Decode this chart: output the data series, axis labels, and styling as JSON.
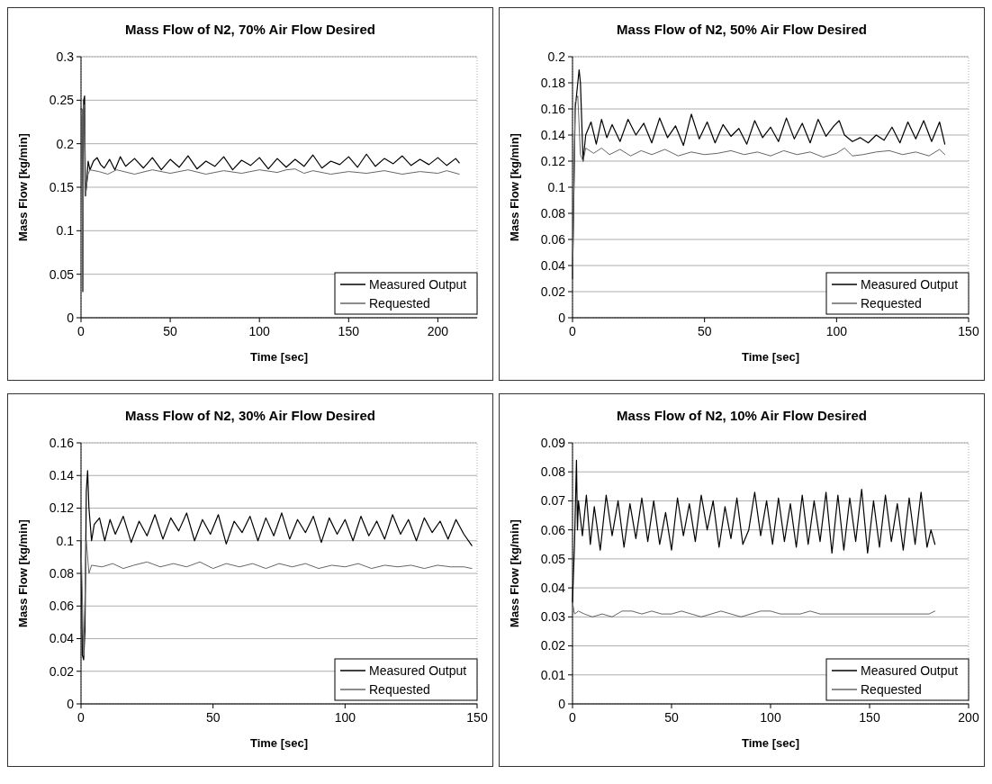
{
  "chart_data": [
    {
      "type": "line",
      "title": "Mass Flow of N2, 70% Air Flow Desired",
      "xlabel": "Time [sec]",
      "ylabel": "Mass Flow [kg/min]",
      "xlim": [
        0,
        222
      ],
      "xticks": [
        0,
        50,
        100,
        150,
        200
      ],
      "ylim": [
        0,
        0.3
      ],
      "yticks": [
        0,
        0.05,
        0.1,
        0.15,
        0.2,
        0.25,
        0.3
      ],
      "grid": "y",
      "legend": "bottom right",
      "line_style": "solid",
      "series": [
        {
          "name": "Measured Output",
          "color": "#000000",
          "x": [
            0,
            0.5,
            1,
            1.5,
            2,
            2.5,
            3,
            4,
            5,
            7,
            9,
            11,
            13,
            16,
            19,
            22,
            25,
            30,
            35,
            40,
            45,
            50,
            55,
            60,
            65,
            70,
            75,
            80,
            85,
            90,
            95,
            100,
            105,
            110,
            115,
            120,
            125,
            130,
            135,
            140,
            145,
            150,
            155,
            160,
            165,
            170,
            175,
            180,
            185,
            190,
            195,
            200,
            205,
            210,
            212
          ],
          "values": [
            0.24,
            0.24,
            0.03,
            0.25,
            0.255,
            0.14,
            0.15,
            0.18,
            0.17,
            0.18,
            0.184,
            0.176,
            0.172,
            0.182,
            0.17,
            0.185,
            0.174,
            0.183,
            0.172,
            0.184,
            0.17,
            0.182,
            0.173,
            0.186,
            0.171,
            0.18,
            0.174,
            0.185,
            0.17,
            0.181,
            0.175,
            0.184,
            0.171,
            0.183,
            0.173,
            0.182,
            0.174,
            0.187,
            0.172,
            0.18,
            0.176,
            0.185,
            0.173,
            0.188,
            0.174,
            0.183,
            0.177,
            0.186,
            0.175,
            0.182,
            0.176,
            0.184,
            0.175,
            0.183,
            0.178
          ]
        },
        {
          "name": "Requested",
          "color": "#666666",
          "x": [
            0,
            0.5,
            1,
            1.5,
            2,
            2.5,
            3,
            4,
            5,
            10,
            15,
            20,
            30,
            40,
            50,
            60,
            70,
            80,
            90,
            100,
            110,
            115,
            120,
            125,
            130,
            140,
            150,
            160,
            170,
            180,
            190,
            200,
            205,
            212
          ],
          "values": [
            0.24,
            0.23,
            0.03,
            0.24,
            0.245,
            0.14,
            0.15,
            0.165,
            0.17,
            0.168,
            0.165,
            0.17,
            0.165,
            0.17,
            0.166,
            0.17,
            0.165,
            0.169,
            0.166,
            0.17,
            0.167,
            0.17,
            0.171,
            0.166,
            0.169,
            0.165,
            0.168,
            0.166,
            0.169,
            0.165,
            0.168,
            0.166,
            0.169,
            0.165
          ]
        }
      ]
    },
    {
      "type": "line",
      "title": "Mass Flow of N2, 50% Air Flow Desired",
      "xlabel": "Time [sec]",
      "ylabel": "Mass Flow [kg/min]",
      "xlim": [
        0,
        150
      ],
      "xticks": [
        0,
        50,
        100,
        150
      ],
      "ylim": [
        0,
        0.2
      ],
      "yticks": [
        0,
        0.02,
        0.04,
        0.06,
        0.08,
        0.1,
        0.12,
        0.14,
        0.16,
        0.18,
        0.2
      ],
      "grid": "y",
      "legend": "bottom right",
      "line_style": "solid",
      "series": [
        {
          "name": "Measured Output",
          "color": "#000000",
          "x": [
            0,
            1,
            1.5,
            2.5,
            3,
            4,
            5,
            7,
            9,
            11,
            13,
            15,
            18,
            21,
            24,
            27,
            30,
            33,
            36,
            39,
            42,
            45,
            48,
            51,
            54,
            57,
            60,
            63,
            66,
            69,
            72,
            75,
            78,
            81,
            84,
            87,
            90,
            93,
            96,
            99,
            101,
            103,
            106,
            109,
            112,
            115,
            118,
            121,
            124,
            127,
            130,
            133,
            136,
            139,
            141
          ],
          "values": [
            0.03,
            0.16,
            0.17,
            0.19,
            0.18,
            0.12,
            0.14,
            0.15,
            0.133,
            0.152,
            0.138,
            0.148,
            0.135,
            0.152,
            0.14,
            0.149,
            0.134,
            0.153,
            0.138,
            0.147,
            0.132,
            0.156,
            0.137,
            0.15,
            0.134,
            0.148,
            0.139,
            0.145,
            0.133,
            0.151,
            0.138,
            0.146,
            0.135,
            0.153,
            0.137,
            0.149,
            0.134,
            0.152,
            0.139,
            0.147,
            0.151,
            0.14,
            0.135,
            0.138,
            0.134,
            0.14,
            0.136,
            0.146,
            0.134,
            0.15,
            0.137,
            0.151,
            0.135,
            0.15,
            0.133
          ]
        },
        {
          "name": "Requested",
          "color": "#666666",
          "x": [
            0,
            1,
            2,
            3,
            4,
            5,
            8,
            11,
            14,
            18,
            22,
            26,
            30,
            35,
            40,
            45,
            50,
            55,
            60,
            65,
            70,
            75,
            80,
            85,
            90,
            95,
            100,
            103,
            106,
            110,
            115,
            120,
            125,
            130,
            135,
            139,
            141
          ],
          "values": [
            0.03,
            0.165,
            0.17,
            0.125,
            0.12,
            0.13,
            0.126,
            0.13,
            0.125,
            0.129,
            0.124,
            0.128,
            0.125,
            0.129,
            0.124,
            0.127,
            0.125,
            0.126,
            0.128,
            0.125,
            0.127,
            0.124,
            0.128,
            0.125,
            0.127,
            0.123,
            0.126,
            0.13,
            0.124,
            0.125,
            0.127,
            0.128,
            0.125,
            0.127,
            0.124,
            0.129,
            0.125
          ]
        }
      ]
    },
    {
      "type": "line",
      "title": "Mass Flow of N2, 30% Air Flow Desired",
      "xlabel": "Time [sec]",
      "ylabel": "Mass Flow [kg/min]",
      "xlim": [
        0,
        150
      ],
      "xticks": [
        0,
        50,
        100,
        150
      ],
      "ylim": [
        0,
        0.16
      ],
      "yticks": [
        0,
        0.02,
        0.04,
        0.06,
        0.08,
        0.1,
        0.12,
        0.14,
        0.16
      ],
      "grid": "y",
      "legend": "bottom right",
      "line_style": "solid",
      "series": [
        {
          "name": "Measured Output",
          "color": "#000000",
          "x": [
            0,
            0.5,
            1,
            1.5,
            2,
            2.5,
            3,
            4,
            5,
            7,
            9,
            11,
            13,
            16,
            19,
            22,
            25,
            28,
            31,
            34,
            37,
            40,
            43,
            46,
            49,
            52,
            55,
            58,
            61,
            64,
            67,
            70,
            73,
            76,
            79,
            82,
            85,
            88,
            91,
            94,
            97,
            100,
            103,
            106,
            109,
            112,
            115,
            118,
            121,
            124,
            127,
            130,
            133,
            136,
            139,
            142,
            145,
            148
          ],
          "values": [
            0.1,
            0.03,
            0.027,
            0.045,
            0.13,
            0.143,
            0.12,
            0.1,
            0.11,
            0.114,
            0.1,
            0.113,
            0.104,
            0.115,
            0.099,
            0.112,
            0.103,
            0.116,
            0.101,
            0.114,
            0.106,
            0.117,
            0.1,
            0.113,
            0.104,
            0.116,
            0.098,
            0.112,
            0.105,
            0.115,
            0.1,
            0.114,
            0.103,
            0.117,
            0.101,
            0.113,
            0.105,
            0.115,
            0.099,
            0.114,
            0.104,
            0.113,
            0.1,
            0.115,
            0.103,
            0.112,
            0.101,
            0.116,
            0.104,
            0.113,
            0.1,
            0.114,
            0.105,
            0.112,
            0.101,
            0.113,
            0.104,
            0.097
          ]
        },
        {
          "name": "Requested",
          "color": "#666666",
          "x": [
            0,
            1,
            2,
            3,
            4,
            8,
            12,
            16,
            20,
            25,
            30,
            35,
            40,
            45,
            50,
            55,
            60,
            65,
            70,
            75,
            80,
            85,
            90,
            95,
            100,
            105,
            110,
            115,
            120,
            125,
            130,
            135,
            140,
            145,
            148
          ],
          "values": [
            0.1,
            0.03,
            0.1,
            0.08,
            0.085,
            0.084,
            0.086,
            0.083,
            0.085,
            0.087,
            0.084,
            0.086,
            0.084,
            0.087,
            0.083,
            0.086,
            0.084,
            0.086,
            0.083,
            0.086,
            0.084,
            0.086,
            0.083,
            0.085,
            0.084,
            0.086,
            0.083,
            0.085,
            0.084,
            0.085,
            0.083,
            0.085,
            0.084,
            0.084,
            0.083
          ]
        }
      ]
    },
    {
      "type": "line",
      "title": "Mass Flow of N2, 10% Air Flow Desired",
      "xlabel": "Time [sec]",
      "ylabel": "Mass Flow [kg/min]",
      "xlim": [
        0,
        200
      ],
      "xticks": [
        0,
        50,
        100,
        150,
        200
      ],
      "ylim": [
        0,
        0.09
      ],
      "yticks": [
        0,
        0.01,
        0.02,
        0.03,
        0.04,
        0.05,
        0.06,
        0.07,
        0.08,
        0.09
      ],
      "grid": "y",
      "legend": "bottom right",
      "line_style": "solid",
      "series": [
        {
          "name": "Measured Output",
          "color": "#000000",
          "x": [
            0,
            1,
            2,
            2.5,
            3,
            5,
            7,
            9,
            11,
            14,
            17,
            20,
            23,
            26,
            29,
            32,
            35,
            38,
            41,
            44,
            47,
            50,
            53,
            56,
            59,
            62,
            65,
            68,
            71,
            74,
            77,
            80,
            83,
            86,
            89,
            92,
            95,
            98,
            101,
            104,
            107,
            110,
            113,
            116,
            119,
            122,
            125,
            128,
            131,
            134,
            137,
            140,
            143,
            146,
            149,
            152,
            155,
            158,
            161,
            164,
            167,
            170,
            173,
            176,
            179,
            181,
            183
          ],
          "values": [
            0.035,
            0.055,
            0.084,
            0.06,
            0.07,
            0.058,
            0.072,
            0.055,
            0.068,
            0.053,
            0.072,
            0.058,
            0.07,
            0.054,
            0.069,
            0.057,
            0.071,
            0.056,
            0.07,
            0.055,
            0.066,
            0.053,
            0.071,
            0.058,
            0.069,
            0.056,
            0.072,
            0.06,
            0.07,
            0.054,
            0.068,
            0.057,
            0.071,
            0.055,
            0.06,
            0.073,
            0.058,
            0.07,
            0.055,
            0.071,
            0.056,
            0.069,
            0.054,
            0.072,
            0.055,
            0.07,
            0.056,
            0.073,
            0.052,
            0.072,
            0.053,
            0.071,
            0.056,
            0.074,
            0.052,
            0.07,
            0.054,
            0.072,
            0.056,
            0.069,
            0.053,
            0.071,
            0.055,
            0.073,
            0.054,
            0.06,
            0.055
          ]
        },
        {
          "name": "Requested",
          "color": "#666666",
          "x": [
            0,
            1,
            3,
            6,
            10,
            15,
            20,
            25,
            30,
            35,
            40,
            45,
            50,
            55,
            60,
            65,
            70,
            75,
            80,
            85,
            90,
            95,
            100,
            105,
            110,
            115,
            120,
            125,
            130,
            135,
            140,
            145,
            150,
            155,
            160,
            165,
            170,
            175,
            180,
            183
          ],
          "values": [
            0.035,
            0.031,
            0.032,
            0.031,
            0.03,
            0.031,
            0.03,
            0.032,
            0.032,
            0.031,
            0.032,
            0.031,
            0.031,
            0.032,
            0.031,
            0.03,
            0.031,
            0.032,
            0.031,
            0.03,
            0.031,
            0.032,
            0.032,
            0.031,
            0.031,
            0.031,
            0.032,
            0.031,
            0.031,
            0.031,
            0.031,
            0.031,
            0.031,
            0.031,
            0.031,
            0.031,
            0.031,
            0.031,
            0.031,
            0.032
          ]
        }
      ]
    }
  ]
}
